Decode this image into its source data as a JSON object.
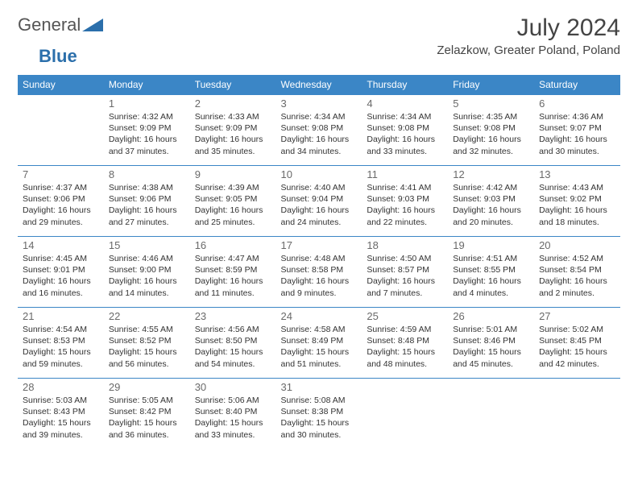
{
  "logo": {
    "word1": "General",
    "word2": "Blue"
  },
  "title": "July 2024",
  "location": "Zelazkow, Greater Poland, Poland",
  "colors": {
    "header_bg": "#3b86c6",
    "header_fg": "#ffffff",
    "border": "#3b86c6",
    "daynum": "#6a6a6a",
    "text": "#333333",
    "logo_gray": "#555555",
    "logo_blue": "#2b6fab",
    "background": "#ffffff"
  },
  "day_headers": [
    "Sunday",
    "Monday",
    "Tuesday",
    "Wednesday",
    "Thursday",
    "Friday",
    "Saturday"
  ],
  "weeks": [
    [
      null,
      {
        "n": "1",
        "sunrise": "4:32 AM",
        "sunset": "9:09 PM",
        "daylight": "16 hours and 37 minutes."
      },
      {
        "n": "2",
        "sunrise": "4:33 AM",
        "sunset": "9:09 PM",
        "daylight": "16 hours and 35 minutes."
      },
      {
        "n": "3",
        "sunrise": "4:34 AM",
        "sunset": "9:08 PM",
        "daylight": "16 hours and 34 minutes."
      },
      {
        "n": "4",
        "sunrise": "4:34 AM",
        "sunset": "9:08 PM",
        "daylight": "16 hours and 33 minutes."
      },
      {
        "n": "5",
        "sunrise": "4:35 AM",
        "sunset": "9:08 PM",
        "daylight": "16 hours and 32 minutes."
      },
      {
        "n": "6",
        "sunrise": "4:36 AM",
        "sunset": "9:07 PM",
        "daylight": "16 hours and 30 minutes."
      }
    ],
    [
      {
        "n": "7",
        "sunrise": "4:37 AM",
        "sunset": "9:06 PM",
        "daylight": "16 hours and 29 minutes."
      },
      {
        "n": "8",
        "sunrise": "4:38 AM",
        "sunset": "9:06 PM",
        "daylight": "16 hours and 27 minutes."
      },
      {
        "n": "9",
        "sunrise": "4:39 AM",
        "sunset": "9:05 PM",
        "daylight": "16 hours and 25 minutes."
      },
      {
        "n": "10",
        "sunrise": "4:40 AM",
        "sunset": "9:04 PM",
        "daylight": "16 hours and 24 minutes."
      },
      {
        "n": "11",
        "sunrise": "4:41 AM",
        "sunset": "9:03 PM",
        "daylight": "16 hours and 22 minutes."
      },
      {
        "n": "12",
        "sunrise": "4:42 AM",
        "sunset": "9:03 PM",
        "daylight": "16 hours and 20 minutes."
      },
      {
        "n": "13",
        "sunrise": "4:43 AM",
        "sunset": "9:02 PM",
        "daylight": "16 hours and 18 minutes."
      }
    ],
    [
      {
        "n": "14",
        "sunrise": "4:45 AM",
        "sunset": "9:01 PM",
        "daylight": "16 hours and 16 minutes."
      },
      {
        "n": "15",
        "sunrise": "4:46 AM",
        "sunset": "9:00 PM",
        "daylight": "16 hours and 14 minutes."
      },
      {
        "n": "16",
        "sunrise": "4:47 AM",
        "sunset": "8:59 PM",
        "daylight": "16 hours and 11 minutes."
      },
      {
        "n": "17",
        "sunrise": "4:48 AM",
        "sunset": "8:58 PM",
        "daylight": "16 hours and 9 minutes."
      },
      {
        "n": "18",
        "sunrise": "4:50 AM",
        "sunset": "8:57 PM",
        "daylight": "16 hours and 7 minutes."
      },
      {
        "n": "19",
        "sunrise": "4:51 AM",
        "sunset": "8:55 PM",
        "daylight": "16 hours and 4 minutes."
      },
      {
        "n": "20",
        "sunrise": "4:52 AM",
        "sunset": "8:54 PM",
        "daylight": "16 hours and 2 minutes."
      }
    ],
    [
      {
        "n": "21",
        "sunrise": "4:54 AM",
        "sunset": "8:53 PM",
        "daylight": "15 hours and 59 minutes."
      },
      {
        "n": "22",
        "sunrise": "4:55 AM",
        "sunset": "8:52 PM",
        "daylight": "15 hours and 56 minutes."
      },
      {
        "n": "23",
        "sunrise": "4:56 AM",
        "sunset": "8:50 PM",
        "daylight": "15 hours and 54 minutes."
      },
      {
        "n": "24",
        "sunrise": "4:58 AM",
        "sunset": "8:49 PM",
        "daylight": "15 hours and 51 minutes."
      },
      {
        "n": "25",
        "sunrise": "4:59 AM",
        "sunset": "8:48 PM",
        "daylight": "15 hours and 48 minutes."
      },
      {
        "n": "26",
        "sunrise": "5:01 AM",
        "sunset": "8:46 PM",
        "daylight": "15 hours and 45 minutes."
      },
      {
        "n": "27",
        "sunrise": "5:02 AM",
        "sunset": "8:45 PM",
        "daylight": "15 hours and 42 minutes."
      }
    ],
    [
      {
        "n": "28",
        "sunrise": "5:03 AM",
        "sunset": "8:43 PM",
        "daylight": "15 hours and 39 minutes."
      },
      {
        "n": "29",
        "sunrise": "5:05 AM",
        "sunset": "8:42 PM",
        "daylight": "15 hours and 36 minutes."
      },
      {
        "n": "30",
        "sunrise": "5:06 AM",
        "sunset": "8:40 PM",
        "daylight": "15 hours and 33 minutes."
      },
      {
        "n": "31",
        "sunrise": "5:08 AM",
        "sunset": "8:38 PM",
        "daylight": "15 hours and 30 minutes."
      },
      null,
      null,
      null
    ]
  ],
  "labels": {
    "sunrise": "Sunrise:",
    "sunset": "Sunset:",
    "daylight": "Daylight:"
  }
}
